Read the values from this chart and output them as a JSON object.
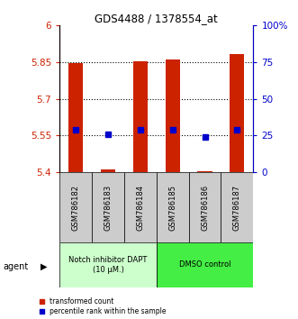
{
  "title": "GDS4488 / 1378554_at",
  "samples": [
    "GSM786182",
    "GSM786183",
    "GSM786184",
    "GSM786185",
    "GSM786186",
    "GSM786187"
  ],
  "red_top": [
    5.845,
    5.41,
    5.855,
    5.86,
    5.405,
    5.885
  ],
  "red_bottom": [
    5.4,
    5.4,
    5.4,
    5.4,
    5.4,
    5.4
  ],
  "blue_y": [
    5.575,
    5.555,
    5.575,
    5.575,
    5.545,
    5.575
  ],
  "ylim_left": [
    5.4,
    6.0
  ],
  "yticks_left": [
    5.4,
    5.55,
    5.7,
    5.85,
    6.0
  ],
  "ytick_labels_left": [
    "5.4",
    "5.55",
    "5.7",
    "5.85",
    "6"
  ],
  "yticks_right_vals": [
    0,
    25,
    50,
    75,
    100
  ],
  "ytick_labels_right": [
    "0",
    "25",
    "50",
    "75",
    "100%"
  ],
  "group1_label": "Notch inhibitor DAPT\n(10 μM.)",
  "group2_label": "DMSO control",
  "agent_label": "agent",
  "legend1": "transformed count",
  "legend2": "percentile rank within the sample",
  "bar_color": "#cc2200",
  "dot_color": "#0000cc",
  "group1_bg": "#ccffcc",
  "group2_bg": "#44ee44",
  "tick_area_bg": "#cccccc",
  "bar_width": 0.45
}
